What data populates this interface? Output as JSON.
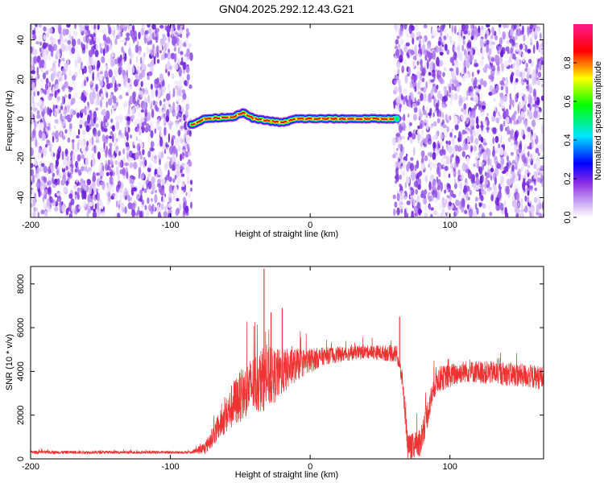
{
  "title": "GN04.2025.292.12.43.G21",
  "chart_data": [
    {
      "type": "heatmap",
      "name": "spectrogram",
      "xlabel": "Height of straight line (km)",
      "ylabel": "Frequency (Hz)",
      "xlim": [
        -200,
        167
      ],
      "ylim": [
        -50,
        48
      ],
      "xticks": [
        -200,
        -100,
        0,
        100
      ],
      "yticks": [
        -40,
        -20,
        0,
        20,
        40
      ],
      "noise_regions_km": [
        [
          -200,
          -85
        ],
        [
          60,
          167
        ]
      ],
      "signal_track": {
        "x_range_km": [
          -85,
          62
        ],
        "frequency_hz_approx": [
          {
            "x": -85,
            "f": -3
          },
          {
            "x": -75,
            "f": 0
          },
          {
            "x": -55,
            "f": 1
          },
          {
            "x": -48,
            "f": 3
          },
          {
            "x": -40,
            "f": 0
          },
          {
            "x": -30,
            "f": -1
          },
          {
            "x": -20,
            "f": -2
          },
          {
            "x": -10,
            "f": 0
          },
          {
            "x": 0,
            "f": 0
          },
          {
            "x": 30,
            "f": 0
          },
          {
            "x": 62,
            "f": 0
          }
        ]
      },
      "colorbar": {
        "label": "Normalized spectral amplitude",
        "ticks": [
          "0.0",
          "0.2",
          "0.4",
          "0.6",
          "0.8"
        ],
        "range": [
          0,
          1
        ],
        "colors": [
          "#ffffff",
          "#8a2be2",
          "#0000ff",
          "#00ffff",
          "#00ff00",
          "#ffff00",
          "#ff0000",
          "#ff00ff"
        ]
      }
    },
    {
      "type": "line",
      "name": "snr",
      "xlabel": "Height of straight line (km)",
      "ylabel": "SNR (10 * v/v)",
      "xlim": [
        -200,
        167
      ],
      "ylim": [
        0,
        8800
      ],
      "xticks": [
        -200,
        -100,
        0,
        100
      ],
      "yticks": [
        0,
        2000,
        4000,
        6000,
        8000
      ],
      "color": "#ee3333",
      "envelope": [
        {
          "x": -200,
          "base": 300,
          "noise": 150
        },
        {
          "x": -85,
          "base": 300,
          "noise": 120
        },
        {
          "x": -75,
          "base": 500,
          "noise": 600
        },
        {
          "x": -65,
          "base": 1500,
          "noise": 1200
        },
        {
          "x": -55,
          "base": 2500,
          "noise": 2200
        },
        {
          "x": -45,
          "base": 3200,
          "noise": 2500
        },
        {
          "x": -35,
          "base": 3600,
          "noise": 3000
        },
        {
          "x": -25,
          "base": 3800,
          "noise": 2500
        },
        {
          "x": -10,
          "base": 4300,
          "noise": 1500
        },
        {
          "x": 10,
          "base": 4700,
          "noise": 800
        },
        {
          "x": 40,
          "base": 4900,
          "noise": 600
        },
        {
          "x": 62,
          "base": 4800,
          "noise": 800
        },
        {
          "x": 66,
          "base": 3600,
          "noise": 800
        },
        {
          "x": 70,
          "base": 500,
          "noise": 1200
        },
        {
          "x": 78,
          "base": 600,
          "noise": 1400
        },
        {
          "x": 90,
          "base": 3600,
          "noise": 1200
        },
        {
          "x": 110,
          "base": 4000,
          "noise": 1000
        },
        {
          "x": 140,
          "base": 3900,
          "noise": 1100
        },
        {
          "x": 167,
          "base": 3700,
          "noise": 1100
        }
      ],
      "spikes": [
        {
          "x": -33,
          "value": 8700
        },
        {
          "x": -28,
          "value": 6700
        },
        {
          "x": -20,
          "value": 6900
        },
        {
          "x": 64,
          "value": 6500
        }
      ]
    }
  ]
}
